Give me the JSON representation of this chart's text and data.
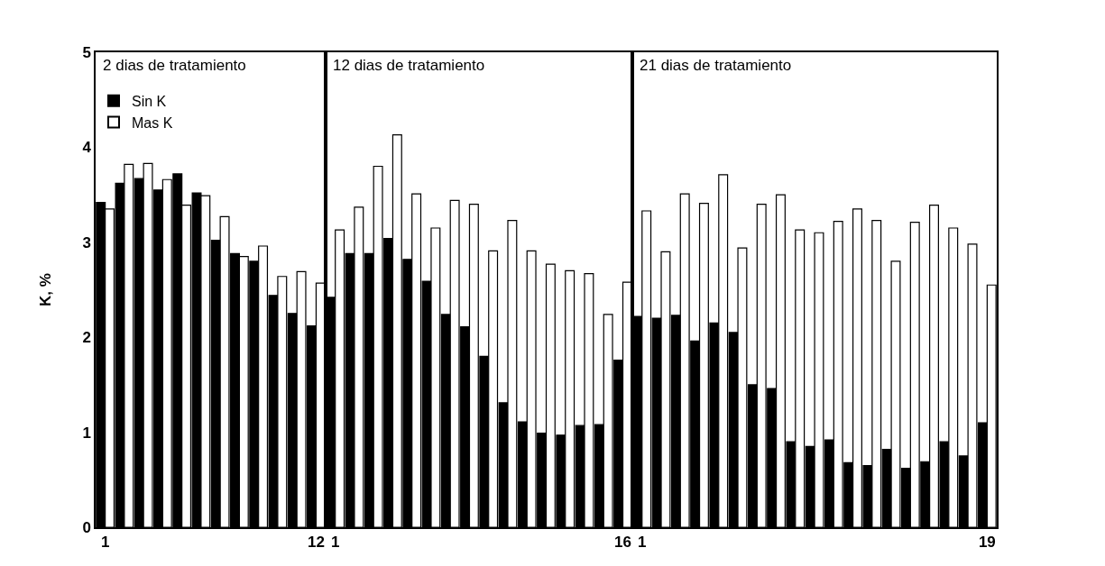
{
  "chart_data": [
    {
      "type": "bar",
      "title": "2 dias de tratamiento",
      "ylabel": "K, %",
      "ylim": [
        0,
        5
      ],
      "yticks": [
        0,
        1,
        2,
        3,
        4,
        5
      ],
      "legend": "top left",
      "categories": [
        "1",
        null,
        null,
        null,
        null,
        null,
        null,
        null,
        null,
        null,
        null,
        "12"
      ],
      "series": [
        {
          "name": "Sin K",
          "color": "#000000",
          "values": [
            3.42,
            3.62,
            3.67,
            3.55,
            3.72,
            3.52,
            3.02,
            2.88,
            2.8,
            2.44,
            2.25,
            2.12
          ]
        },
        {
          "name": "Mas K",
          "color": "#ffffff",
          "values": [
            3.35,
            3.82,
            3.83,
            3.66,
            3.39,
            3.49,
            3.27,
            2.85,
            2.96,
            2.64,
            2.69,
            2.57
          ]
        }
      ]
    },
    {
      "type": "bar",
      "title": "12 dias de tratamiento",
      "ylim": [
        0,
        5
      ],
      "yticks": [
        0,
        1,
        2,
        3,
        4,
        5
      ],
      "tick_labels": "x",
      "categories": [
        "1",
        null,
        null,
        null,
        null,
        null,
        null,
        null,
        null,
        null,
        null,
        null,
        null,
        null,
        null,
        "16"
      ],
      "series": [
        {
          "color": "#000000",
          "values": [
            2.42,
            2.88,
            2.88,
            3.04,
            2.82,
            2.59,
            2.24,
            2.11,
            1.8,
            1.31,
            1.11,
            0.99,
            0.97,
            1.07,
            1.08,
            1.76
          ]
        },
        {
          "color": "#ffffff",
          "values": [
            3.13,
            3.37,
            3.8,
            4.13,
            3.51,
            3.15,
            3.44,
            3.4,
            2.91,
            3.23,
            2.91,
            2.77,
            2.7,
            2.67,
            2.24,
            2.58
          ]
        }
      ]
    },
    {
      "type": "bar",
      "title": "21 dias de tratamiento",
      "ylim": [
        0,
        5
      ],
      "yticks": [
        0,
        1,
        2,
        3,
        4,
        5
      ],
      "tick_labels": "x",
      "categories": [
        "1",
        null,
        null,
        null,
        null,
        null,
        null,
        null,
        null,
        null,
        null,
        null,
        null,
        null,
        null,
        null,
        null,
        null,
        "19"
      ],
      "series": [
        {
          "color": "#000000",
          "values": [
            2.22,
            2.2,
            2.23,
            1.96,
            2.15,
            2.05,
            1.5,
            1.46,
            0.9,
            0.85,
            0.92,
            0.68,
            0.65,
            0.82,
            0.62,
            0.69,
            0.9,
            0.75,
            1.1
          ]
        },
        {
          "color": "#ffffff",
          "values": [
            3.33,
            2.9,
            3.51,
            3.41,
            3.71,
            2.94,
            3.4,
            3.5,
            3.13,
            3.1,
            3.22,
            3.35,
            3.23,
            2.8,
            3.21,
            3.39,
            3.15,
            2.98,
            2.55
          ]
        }
      ]
    }
  ]
}
